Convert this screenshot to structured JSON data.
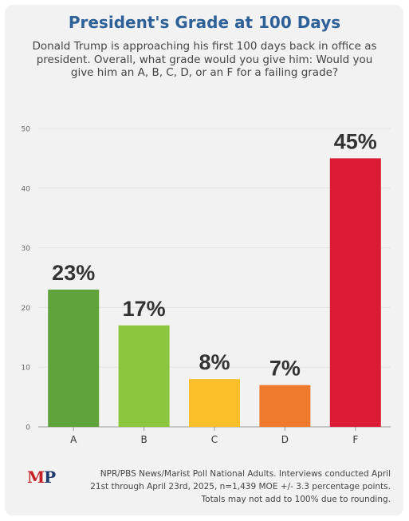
{
  "title": "President's Grade at 100 Days",
  "subtitle": "Donald Trump is approaching his first 100 days back in office as president. Overall, what grade would you give him: Would you give him an A, B, C, D, or an F for a failing grade?",
  "logo_text": "MP",
  "source_lines": [
    "NPR/PBS News/Marist Poll National Adults. Interviews conducted April",
    "21st through April 23rd, 2025, n=1,439 MOE +/- 3.3 percentage points.",
    "Totals may not add to 100% due to rounding."
  ],
  "chart_data": {
    "type": "bar",
    "categories": [
      "A",
      "B",
      "C",
      "D",
      "F"
    ],
    "values": [
      23,
      17,
      8,
      7,
      45
    ],
    "data_labels": [
      "23%",
      "17%",
      "8%",
      "7%",
      "45%"
    ],
    "colors": [
      "#5fa33a",
      "#8cc63e",
      "#fbbf2a",
      "#ef7a2e",
      "#dc1c35"
    ],
    "ylim": [
      0,
      50
    ],
    "yticks": [
      0,
      10,
      20,
      30,
      40,
      50
    ],
    "grid": true,
    "title": "",
    "xlabel": "",
    "ylabel": ""
  }
}
